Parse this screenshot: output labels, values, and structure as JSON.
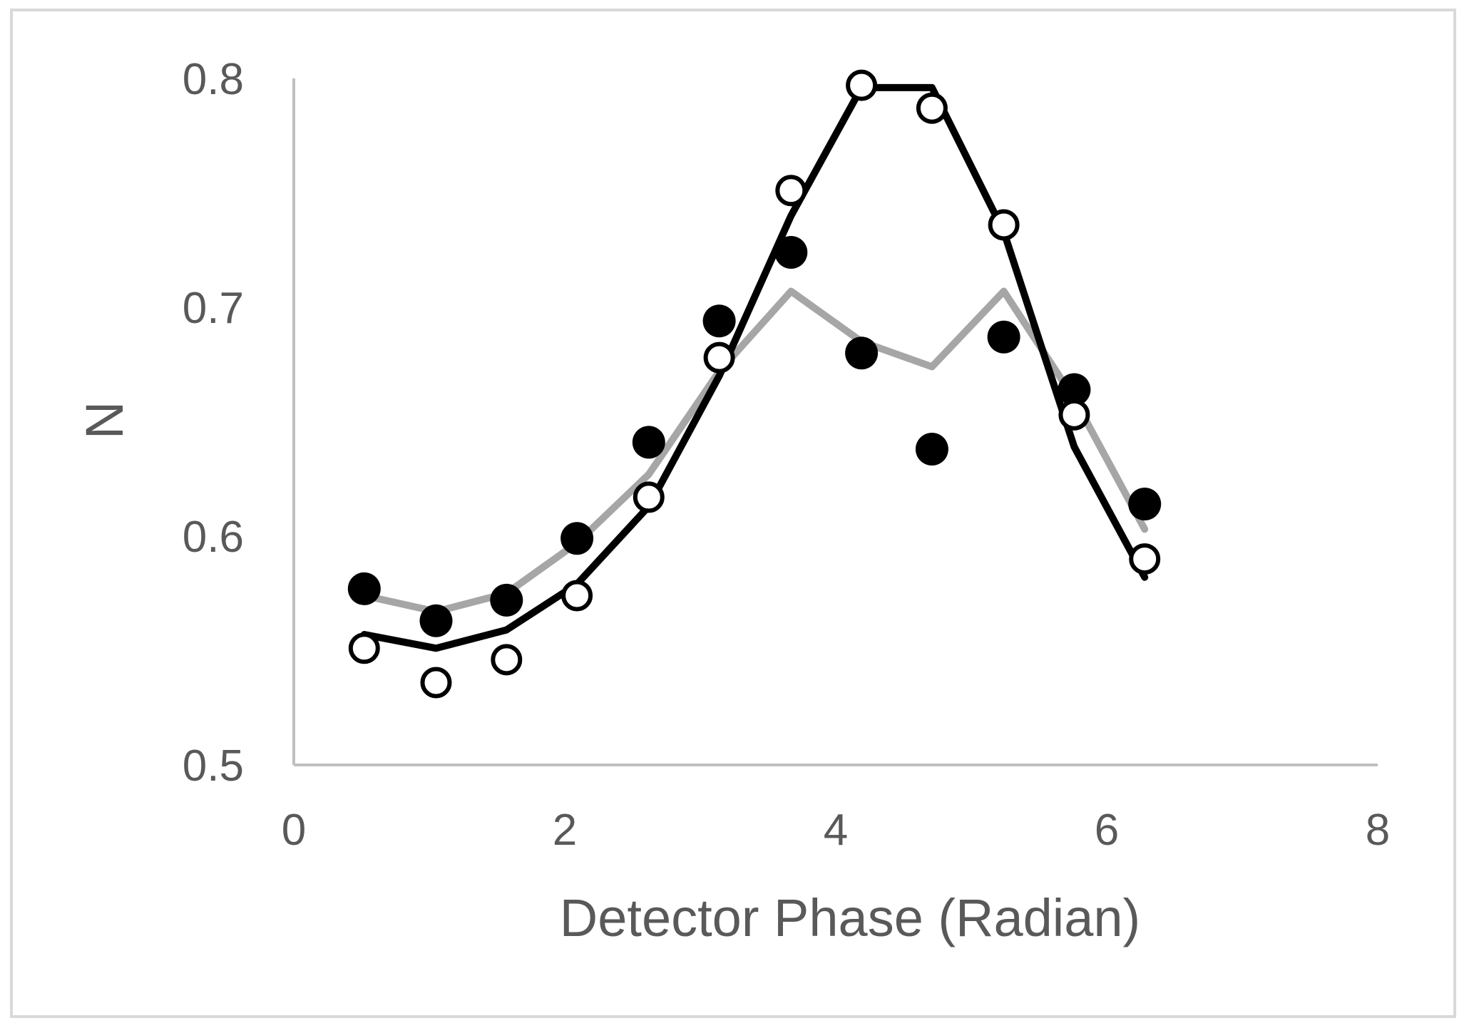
{
  "chart_data": {
    "type": "scatter",
    "xlabel": "Detector Phase (Radian)",
    "ylabel": "N",
    "xlim": [
      0,
      8
    ],
    "ylim": [
      0.5,
      0.8
    ],
    "x_ticks": [
      "0",
      "2",
      "4",
      "6",
      "8"
    ],
    "y_ticks": [
      "0.5",
      "0.6",
      "0.7",
      "0.8"
    ],
    "grid": false,
    "legend": "none",
    "series": [
      {
        "style": "filled-markers",
        "color": "#000000",
        "x": [
          0.52,
          1.05,
          1.57,
          2.09,
          2.62,
          3.14,
          3.67,
          4.19,
          4.71,
          5.24,
          5.76,
          6.28
        ],
        "y": [
          0.577,
          0.563,
          0.572,
          0.599,
          0.641,
          0.694,
          0.724,
          0.68,
          0.638,
          0.687,
          0.664,
          0.614
        ]
      },
      {
        "style": "open-markers",
        "color": "#000000",
        "x": [
          0.52,
          1.05,
          1.57,
          2.09,
          2.62,
          3.14,
          3.67,
          4.19,
          4.71,
          5.24,
          5.76,
          6.28
        ],
        "y": [
          0.551,
          0.536,
          0.546,
          0.574,
          0.617,
          0.678,
          0.751,
          0.797,
          0.787,
          0.736,
          0.653,
          0.59
        ]
      },
      {
        "style": "line",
        "color": "#a6a6a6",
        "x": [
          0.52,
          1.05,
          1.57,
          2.09,
          2.62,
          3.14,
          3.67,
          4.19,
          4.71,
          5.24,
          5.76,
          6.28
        ],
        "y": [
          0.574,
          0.567,
          0.575,
          0.597,
          0.627,
          0.672,
          0.707,
          0.685,
          0.674,
          0.707,
          0.66,
          0.603
        ]
      },
      {
        "style": "line",
        "color": "#000000",
        "x": [
          0.52,
          1.05,
          1.57,
          2.09,
          2.62,
          3.14,
          3.67,
          4.19,
          4.71,
          5.24,
          5.76,
          6.28
        ],
        "y": [
          0.557,
          0.551,
          0.559,
          0.579,
          0.613,
          0.67,
          0.74,
          0.796,
          0.796,
          0.733,
          0.639,
          0.582
        ]
      }
    ]
  }
}
